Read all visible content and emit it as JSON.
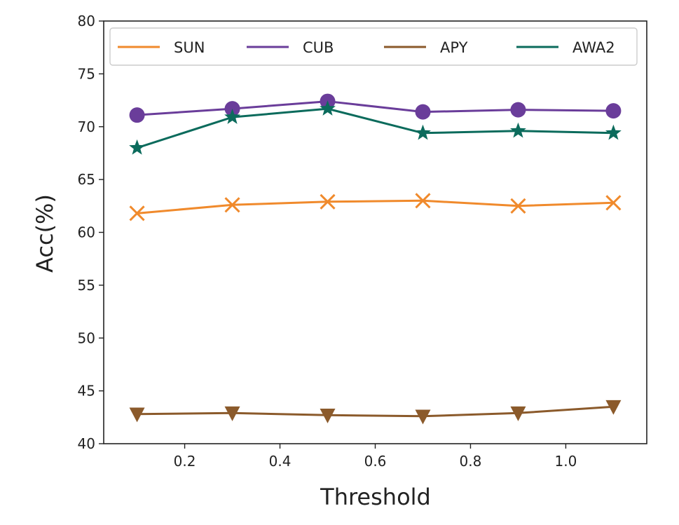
{
  "chart_data": {
    "type": "line",
    "title": "",
    "xlabel": "Threshold",
    "ylabel": "Acc(%)",
    "x": [
      0.1,
      0.3,
      0.5,
      0.7,
      0.9,
      1.1
    ],
    "xlim": [
      0.03,
      1.17
    ],
    "ylim": [
      40,
      80
    ],
    "xticks": [
      0.2,
      0.4,
      0.6,
      0.8,
      1.0
    ],
    "xtick_labels": [
      "0.2",
      "0.4",
      "0.6",
      "0.8",
      "1.0"
    ],
    "yticks": [
      40,
      45,
      50,
      55,
      60,
      65,
      70,
      75,
      80
    ],
    "ytick_labels": [
      "40",
      "45",
      "50",
      "55",
      "60",
      "65",
      "70",
      "75",
      "80"
    ],
    "grid": false,
    "legend_position": "top",
    "series": [
      {
        "name": "SUN",
        "color": "#f08a2c",
        "marker": "x",
        "values": [
          61.8,
          62.6,
          62.9,
          63.0,
          62.5,
          62.8
        ]
      },
      {
        "name": "CUB",
        "color": "#6a3d9a",
        "marker": "circle",
        "values": [
          71.1,
          71.7,
          72.4,
          71.4,
          71.6,
          71.5
        ]
      },
      {
        "name": "APY",
        "color": "#8b5a2b",
        "marker": "triangle-down",
        "values": [
          42.8,
          42.9,
          42.7,
          42.6,
          42.9,
          43.5
        ]
      },
      {
        "name": "AWA2",
        "color": "#0b6b5c",
        "marker": "star",
        "values": [
          68.0,
          70.9,
          71.7,
          69.4,
          69.6,
          69.4
        ]
      }
    ]
  }
}
